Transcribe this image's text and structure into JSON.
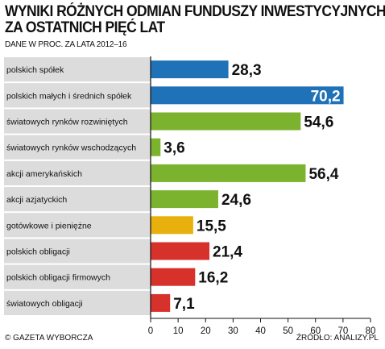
{
  "header": {
    "title_line1": "WYNIKI RÓŻNYCH ODMIAN FUNDUSZY INWESTYCYJNYCH",
    "title_line2": "ZA OSTATNICH PIĘĆ LAT",
    "subtitle": "DANE W PROC. ZA LATA 2012–16"
  },
  "footer": {
    "credit": "© GAZETA WYBORCZA",
    "source": "ŹRÓDŁO: ANALIZY.PL"
  },
  "colors": {
    "blue": "#1f72b8",
    "green": "#7cb32e",
    "yellow": "#e8b00c",
    "red": "#d7312b",
    "row_shade": "#dcdcdc"
  },
  "chart_data": {
    "type": "bar",
    "orientation": "horizontal",
    "title": "WYNIKI RÓŻNYCH ODMIAN FUNDUSZY INWESTYCYJNYCH ZA OSTATNICH PIĘĆ LAT",
    "subtitle": "DANE W PROC. ZA LATA 2012–16",
    "categories": [
      "polskich spółek",
      "polskich małych i średnich spółek",
      "światowych rynków rozwiniętych",
      "światowych rynków wschodzących",
      "akcji amerykańskich",
      "akcji azjatyckich",
      "gotówkowe i pieniężne",
      "polskich obligacji",
      "polskich obligacji firmowych",
      "światowych obligacji"
    ],
    "values": [
      28.3,
      70.2,
      54.6,
      3.6,
      56.4,
      24.6,
      15.5,
      21.4,
      16.2,
      7.1
    ],
    "value_labels": [
      "28,3",
      "70,2",
      "54,6",
      "3,6",
      "56,4",
      "24,6",
      "15,5",
      "21,4",
      "16,2",
      "7,1"
    ],
    "bar_colors": [
      "blue",
      "blue",
      "green",
      "green",
      "green",
      "green",
      "yellow",
      "red",
      "red",
      "red"
    ],
    "xlim": [
      0,
      80
    ],
    "xticks": [
      0,
      10,
      20,
      30,
      40,
      50,
      60,
      70,
      80
    ],
    "xtick_labels": [
      "0",
      "10",
      "20",
      "30",
      "40",
      "50",
      "60",
      "70",
      "80"
    ],
    "xlabel": "",
    "ylabel": "",
    "grid": false,
    "legend": "none"
  }
}
